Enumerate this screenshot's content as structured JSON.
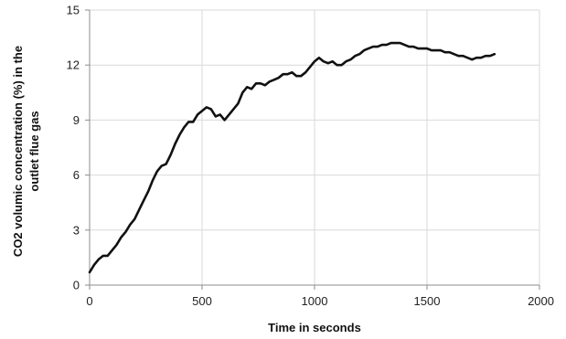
{
  "chart_data": {
    "type": "line",
    "xlabel": "Time in seconds",
    "ylabel_lines": [
      "CO2  volumic concentration (%) in the",
      "outlet flue gas"
    ],
    "xlim": [
      0,
      2000
    ],
    "ylim": [
      0,
      15
    ],
    "xticks": [
      0,
      500,
      1000,
      1500,
      2000
    ],
    "xtick_labels": [
      "0",
      "500",
      "1000",
      "1500",
      "2000"
    ],
    "yticks": [
      0,
      3,
      6,
      9,
      12,
      15
    ],
    "ytick_labels": [
      "0",
      "3",
      "6",
      "9",
      "12",
      "15"
    ],
    "grid": true,
    "legend": "none",
    "series": [
      {
        "color": "#111111",
        "x": [
          0,
          20,
          40,
          60,
          80,
          100,
          120,
          140,
          160,
          180,
          200,
          220,
          240,
          260,
          280,
          300,
          320,
          340,
          360,
          380,
          400,
          420,
          440,
          460,
          480,
          500,
          520,
          540,
          560,
          580,
          600,
          620,
          640,
          660,
          680,
          700,
          720,
          740,
          760,
          780,
          800,
          820,
          840,
          860,
          880,
          900,
          920,
          940,
          960,
          980,
          1000,
          1020,
          1040,
          1060,
          1080,
          1100,
          1120,
          1140,
          1160,
          1180,
          1200,
          1220,
          1240,
          1260,
          1280,
          1300,
          1320,
          1340,
          1360,
          1380,
          1400,
          1420,
          1440,
          1460,
          1480,
          1500,
          1520,
          1540,
          1560,
          1580,
          1600,
          1620,
          1640,
          1660,
          1680,
          1700,
          1720,
          1740,
          1760,
          1780,
          1800
        ],
        "y": [
          0.7,
          1.1,
          1.4,
          1.6,
          1.6,
          1.9,
          2.2,
          2.6,
          2.9,
          3.3,
          3.6,
          4.1,
          4.6,
          5.1,
          5.7,
          6.2,
          6.5,
          6.6,
          7.1,
          7.7,
          8.2,
          8.6,
          8.9,
          8.9,
          9.3,
          9.5,
          9.7,
          9.6,
          9.2,
          9.3,
          9.0,
          9.3,
          9.6,
          9.9,
          10.5,
          10.8,
          10.7,
          11.0,
          11.0,
          10.9,
          11.1,
          11.2,
          11.3,
          11.5,
          11.5,
          11.6,
          11.4,
          11.4,
          11.6,
          11.9,
          12.2,
          12.4,
          12.2,
          12.1,
          12.2,
          12.0,
          12.0,
          12.2,
          12.3,
          12.5,
          12.6,
          12.8,
          12.9,
          13.0,
          13.0,
          13.1,
          13.1,
          13.2,
          13.2,
          13.2,
          13.1,
          13.0,
          13.0,
          12.9,
          12.9,
          12.9,
          12.8,
          12.8,
          12.8,
          12.7,
          12.7,
          12.6,
          12.5,
          12.5,
          12.4,
          12.3,
          12.4,
          12.4,
          12.5,
          12.5,
          12.6
        ]
      }
    ]
  }
}
